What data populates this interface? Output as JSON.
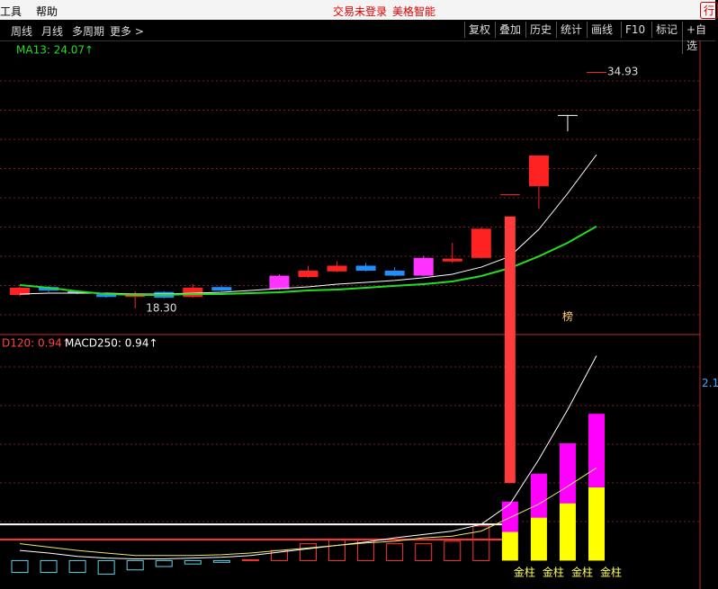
{
  "menu": {
    "items": [
      "工具",
      "帮助"
    ],
    "status": "交易未登录",
    "stock_name": "美格智能",
    "corner": "行"
  },
  "toolbar": {
    "left": [
      "周线",
      "月线",
      "多周期",
      "更多 >"
    ],
    "right": [
      "复权",
      "叠加",
      "历史",
      "统计",
      "画线",
      "F10",
      "标记",
      "+自选"
    ]
  },
  "chart_data": [
    {
      "type": "candlestick",
      "indicator_label": "MA13: 24.07↑",
      "ylim": [
        16.46,
        36.51
      ],
      "open": [
        19.24,
        19.8,
        19.5,
        19.3,
        19.1,
        19.45,
        19.1,
        19.8,
        null,
        19.65,
        20.5,
        20.9,
        21.3,
        20.95,
        20.6,
        21.6,
        21.85,
        26.33,
        26.9,
        31.9,
        34.93
      ],
      "high": [
        19.85,
        19.9,
        19.55,
        19.35,
        19.5,
        19.5,
        20.0,
        19.85,
        null,
        20.7,
        21.3,
        21.6,
        21.5,
        21.2,
        22.0,
        22.9,
        24.0,
        26.33,
        29.05,
        31.9,
        34.93
      ],
      "low": [
        19.15,
        19.45,
        19.3,
        19.05,
        18.3,
        19.0,
        19.05,
        19.5,
        null,
        19.6,
        20.45,
        20.85,
        20.9,
        20.55,
        20.55,
        21.5,
        21.8,
        26.33,
        25.32,
        30.76,
        34.93
      ],
      "close": [
        19.75,
        19.55,
        19.35,
        19.1,
        19.35,
        19.05,
        19.75,
        19.55,
        null,
        20.6,
        20.95,
        21.3,
        20.95,
        20.6,
        21.85,
        21.8,
        23.9,
        26.33,
        29.05,
        31.9,
        34.93
      ],
      "candle_colors": [
        "#ff2222",
        "#1e90ff",
        "#7fb0d0",
        "#1e90ff",
        "#ff2222",
        "#1e90ff",
        "#ff2222",
        "#1e90ff",
        null,
        "#ff33ff",
        "#ff2222",
        "#ff2222",
        "#1e90ff",
        "#1e90ff",
        "#ff33ff",
        "#ff2222",
        "#ff2222",
        "#ff2222",
        "#ff2222",
        "#ffffff",
        "#ff2222"
      ],
      "series": [
        {
          "color": "#ffffff",
          "values": [
            19.31,
            19.37,
            19.37,
            19.37,
            19.31,
            19.31,
            19.37,
            19.43,
            19.56,
            19.69,
            19.81,
            20.0,
            20.13,
            20.26,
            20.45,
            20.7,
            21.2,
            21.96,
            23.86,
            26.39,
            29.11
          ]
        },
        {
          "color": "#22dd22",
          "values": [
            19.94,
            19.75,
            19.5,
            19.31,
            19.24,
            19.24,
            19.31,
            19.31,
            19.37,
            19.43,
            19.56,
            19.62,
            19.75,
            19.88,
            20.0,
            20.19,
            20.57,
            21.14,
            21.96,
            22.91,
            24.07
          ]
        }
      ],
      "annotations": [
        {
          "label": "34.93",
          "index": 20,
          "value": 34.93
        },
        {
          "label": "18.30",
          "index": 4,
          "value": 18.3
        },
        {
          "label": "榜",
          "index": 19,
          "value": 17.7
        }
      ]
    },
    {
      "type": "macd",
      "indicator_labels": [
        "D120: 0.94↑",
        "MACD250: 0.94↑"
      ],
      "ylim": [
        -0.23,
        2.68
      ],
      "yticks": [
        2.1
      ],
      "series": [
        {
          "style": "hollow",
          "color_up": "#ff3333",
          "color_down": "#5fd3e6",
          "values": [
            -0.14,
            -0.14,
            -0.14,
            -0.16,
            -0.11,
            -0.07,
            -0.04,
            -0.02,
            0.01,
            0.12,
            0.2,
            0.25,
            0.25,
            0.2,
            0.2,
            0.23,
            0.41,
            null,
            null,
            null,
            null
          ]
        },
        {
          "style": "bar",
          "color": "#ffff00",
          "values": [
            null,
            null,
            null,
            null,
            null,
            null,
            null,
            null,
            null,
            null,
            null,
            null,
            null,
            null,
            null,
            null,
            null,
            0.34,
            0.51,
            0.68,
            0.87
          ]
        },
        {
          "style": "stacked",
          "color": "#ff00ff",
          "values": [
            null,
            null,
            null,
            null,
            null,
            null,
            null,
            null,
            null,
            null,
            null,
            null,
            null,
            null,
            null,
            null,
            null,
            0.36,
            0.52,
            0.71,
            0.87
          ]
        },
        {
          "style": "range",
          "color": "#ff3b3b",
          "low": [
            null,
            null,
            null,
            null,
            null,
            null,
            null,
            null,
            null,
            null,
            null,
            null,
            null,
            null,
            null,
            null,
            null,
            0.92,
            null,
            null,
            null
          ],
          "high": [
            null,
            null,
            null,
            null,
            null,
            null,
            null,
            null,
            null,
            null,
            null,
            null,
            null,
            null,
            null,
            null,
            null,
            4.08,
            null,
            null,
            null
          ]
        },
        {
          "style": "line",
          "color": "#ffffff",
          "values": [
            0.12,
            0.09,
            0.05,
            0.03,
            0.02,
            0.02,
            0.03,
            0.04,
            0.06,
            0.1,
            0.14,
            0.18,
            0.22,
            0.27,
            0.31,
            0.35,
            0.43,
            0.67,
            1.2,
            1.79,
            2.43
          ]
        },
        {
          "style": "line",
          "color": "#e8e870",
          "values": [
            0.2,
            0.16,
            0.12,
            0.09,
            0.06,
            0.06,
            0.06,
            0.07,
            0.09,
            0.12,
            0.15,
            0.18,
            0.21,
            0.23,
            0.27,
            0.29,
            0.35,
            0.51,
            0.67,
            0.88,
            1.1
          ]
        }
      ],
      "reference_lines": [
        {
          "value": 0.43,
          "color": "#ffffff"
        },
        {
          "value": 0.25,
          "color": "#ff3333"
        }
      ],
      "annotations": [
        {
          "label": "金柱",
          "index": 17
        },
        {
          "label": "金柱",
          "index": 18
        },
        {
          "label": "金柱",
          "index": 19
        },
        {
          "label": "金柱",
          "index": 20
        }
      ]
    }
  ]
}
